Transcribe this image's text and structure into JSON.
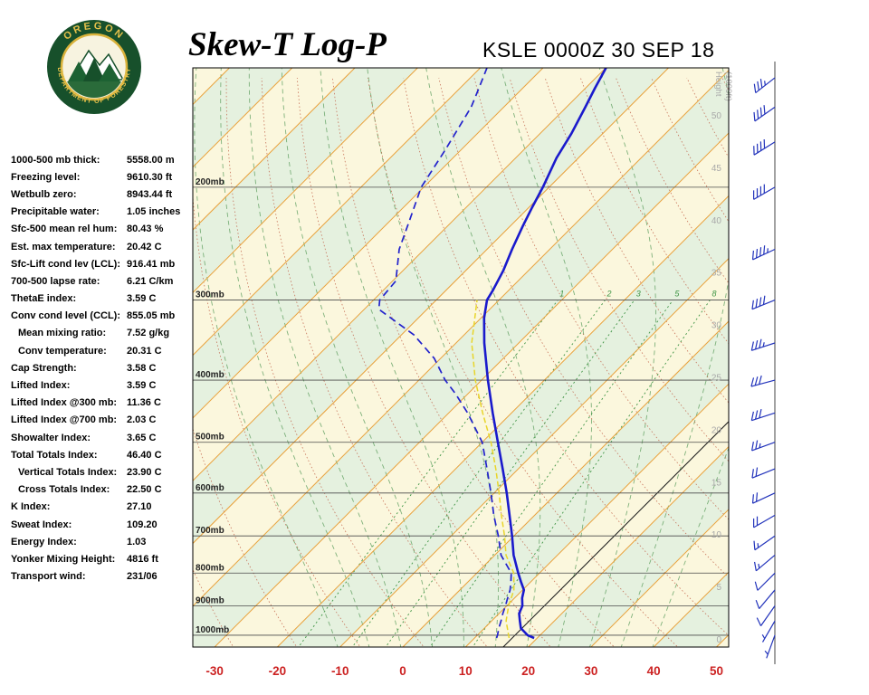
{
  "header": {
    "title": "Skew-T Log-P",
    "station": "KSLE 0000Z 30 SEP 18",
    "logo_text_top": "OREGON",
    "logo_text_bottom": "DEPARTMENT OF FORESTRY"
  },
  "indices": [
    {
      "label": "1000-500 mb thick:",
      "value": "5558.00 m"
    },
    {
      "label": "Freezing level:",
      "value": "9610.30 ft"
    },
    {
      "label": "Wetbulb zero:",
      "value": "8943.44 ft"
    },
    {
      "label": "Precipitable water:",
      "value": "1.05 inches"
    },
    {
      "label": "Sfc-500 mean rel hum:",
      "value": "80.43 %"
    },
    {
      "label": "Est. max temperature:",
      "value": "20.42 C"
    },
    {
      "label": "Sfc-Lift cond lev (LCL):",
      "value": "916.41 mb"
    },
    {
      "label": "700-500 lapse rate:",
      "value": "6.21 C/km"
    },
    {
      "label": "ThetaE index:",
      "value": "3.59 C"
    },
    {
      "label": "Conv cond level (CCL):",
      "value": "855.05 mb"
    },
    {
      "label": "Mean mixing ratio:",
      "value": "7.52 g/kg",
      "indent": true
    },
    {
      "label": "Conv temperature:",
      "value": "20.31 C",
      "indent": true
    },
    {
      "label": "Cap Strength:",
      "value": "3.58 C"
    },
    {
      "label": "Lifted Index:",
      "value": "3.59 C"
    },
    {
      "label": "Lifted Index @300 mb:",
      "value": "11.36 C"
    },
    {
      "label": "Lifted Index @700 mb:",
      "value": "2.03 C"
    },
    {
      "label": "Showalter Index:",
      "value": "3.65 C"
    },
    {
      "label": "Total Totals Index:",
      "value": "46.40 C"
    },
    {
      "label": "Vertical Totals Index:",
      "value": "23.90 C",
      "indent": true
    },
    {
      "label": "Cross Totals Index:",
      "value": "22.50 C",
      "indent": true
    },
    {
      "label": "K Index:",
      "value": "27.10"
    },
    {
      "label": "Sweat Index:",
      "value": "109.20"
    },
    {
      "label": "Energy Index:",
      "value": "1.03"
    },
    {
      "label": "Yonker Mixing Height:",
      "value": "4816 ft"
    },
    {
      "label": "Transport wind:",
      "value": "231/06"
    }
  ],
  "chart_data": {
    "type": "line",
    "subtype": "skew-t-log-p",
    "title": "Skew-T Log-P",
    "station": "KSLE 0000Z 30 SEP 18",
    "temp_axis": {
      "ticks": [
        -30,
        -20,
        -10,
        0,
        10,
        20,
        30,
        40,
        50
      ],
      "unit": "C",
      "color": "#cc2222"
    },
    "pressure_levels_mb": [
      200,
      300,
      400,
      500,
      600,
      700,
      800,
      900,
      1000
    ],
    "height_axis": {
      "label_1": "Height",
      "label_2": "(1000ft)",
      "ticks": [
        0,
        5,
        10,
        15,
        20,
        25,
        30,
        35,
        40,
        45,
        50
      ]
    },
    "mixing_ratio_gkg": [
      1,
      2,
      3,
      5,
      8
    ],
    "isotherms_c": {
      "min": -120,
      "max": 50,
      "step": 10
    },
    "dry_adiabats_c": {
      "min": -30,
      "max": 160,
      "step": 10
    },
    "moist_adiabat_surface_temps_c": [
      -10,
      -5,
      0,
      5,
      10,
      15,
      20,
      25,
      30,
      35,
      40
    ],
    "reference_line_bottom_temp_c": 16,
    "temperature_profile_p_t": [
      [
        1010,
        19.5
      ],
      [
        1000,
        18.0
      ],
      [
        975,
        15.8
      ],
      [
        950,
        14.5
      ],
      [
        925,
        13.2
      ],
      [
        900,
        12.5
      ],
      [
        875,
        11.2
      ],
      [
        850,
        10.2
      ],
      [
        825,
        8.4
      ],
      [
        800,
        6.6
      ],
      [
        750,
        3.0
      ],
      [
        700,
        -0.3
      ],
      [
        650,
        -4.0
      ],
      [
        600,
        -8.0
      ],
      [
        550,
        -12.5
      ],
      [
        500,
        -17.5
      ],
      [
        450,
        -23.0
      ],
      [
        400,
        -29.0
      ],
      [
        350,
        -35.5
      ],
      [
        320,
        -39.5
      ],
      [
        300,
        -41.9
      ],
      [
        290,
        -42.5
      ],
      [
        270,
        -44.0
      ],
      [
        250,
        -46.0
      ],
      [
        230,
        -48.0
      ],
      [
        215,
        -49.5
      ],
      [
        200,
        -51.0
      ],
      [
        180,
        -53.5
      ],
      [
        165,
        -55.0
      ],
      [
        150,
        -57.0
      ],
      [
        140,
        -58.5
      ],
      [
        130,
        -60.0
      ]
    ],
    "dewpoint_profile_p_t": [
      [
        1010,
        13.5
      ],
      [
        1000,
        13.2
      ],
      [
        975,
        12.3
      ],
      [
        950,
        11.5
      ],
      [
        925,
        10.6
      ],
      [
        900,
        9.8
      ],
      [
        875,
        8.9
      ],
      [
        850,
        8.0
      ],
      [
        825,
        6.8
      ],
      [
        800,
        5.5
      ],
      [
        750,
        1.0
      ],
      [
        700,
        -2.5
      ],
      [
        650,
        -6.5
      ],
      [
        600,
        -10.5
      ],
      [
        550,
        -15.0
      ],
      [
        500,
        -20.0
      ],
      [
        450,
        -27.0
      ],
      [
        420,
        -32.0
      ],
      [
        400,
        -35.8
      ],
      [
        370,
        -41.0
      ],
      [
        340,
        -48.0
      ],
      [
        310,
        -57.7
      ],
      [
        300,
        -59.0
      ],
      [
        280,
        -59.5
      ],
      [
        250,
        -64.0
      ],
      [
        225,
        -67.0
      ],
      [
        200,
        -70.4
      ],
      [
        175,
        -72.5
      ],
      [
        150,
        -75.2
      ],
      [
        140,
        -77.0
      ],
      [
        130,
        -79.0
      ]
    ],
    "wetbulb_profile_p_t": [
      [
        1010,
        15.5
      ],
      [
        950,
        12.3
      ],
      [
        900,
        10.3
      ],
      [
        850,
        8.6
      ],
      [
        800,
        5.9
      ],
      [
        750,
        1.8
      ],
      [
        700,
        -1.5
      ],
      [
        650,
        -5.3
      ],
      [
        600,
        -9.2
      ],
      [
        550,
        -13.6
      ],
      [
        500,
        -18.6
      ],
      [
        450,
        -24.6
      ],
      [
        400,
        -31.0
      ],
      [
        350,
        -37.5
      ],
      [
        300,
        -43.5
      ]
    ],
    "wind_barbs_p_dir_spd": [
      [
        1000,
        200,
        4
      ],
      [
        950,
        210,
        5
      ],
      [
        900,
        215,
        8
      ],
      [
        850,
        220,
        10
      ],
      [
        800,
        225,
        12
      ],
      [
        750,
        230,
        14
      ],
      [
        700,
        235,
        15
      ],
      [
        650,
        240,
        18
      ],
      [
        600,
        245,
        20
      ],
      [
        550,
        248,
        22
      ],
      [
        500,
        250,
        25
      ],
      [
        450,
        252,
        28
      ],
      [
        400,
        255,
        32
      ],
      [
        350,
        252,
        35
      ],
      [
        300,
        248,
        40
      ],
      [
        250,
        245,
        45
      ],
      [
        200,
        240,
        42
      ],
      [
        170,
        238,
        40
      ],
      [
        150,
        235,
        38
      ],
      [
        135,
        232,
        35
      ]
    ],
    "colors": {
      "temperature": "#1a1acc",
      "dewpoint": "#2222cc",
      "wetbulb": "#e8d52a",
      "isotherm": "#e9a13b",
      "dry_adiabat": "#c2654b",
      "moist_adiabat": "#69a569",
      "mixing_ratio": "#3e9444",
      "band_cream": "#fbf7dd",
      "band_green": "#e5f1df",
      "pressure_line": "#4a4a4a",
      "height_label": "#a8a8a8",
      "wind_barb": "#2233bb",
      "pressure_label": "#222222"
    }
  }
}
